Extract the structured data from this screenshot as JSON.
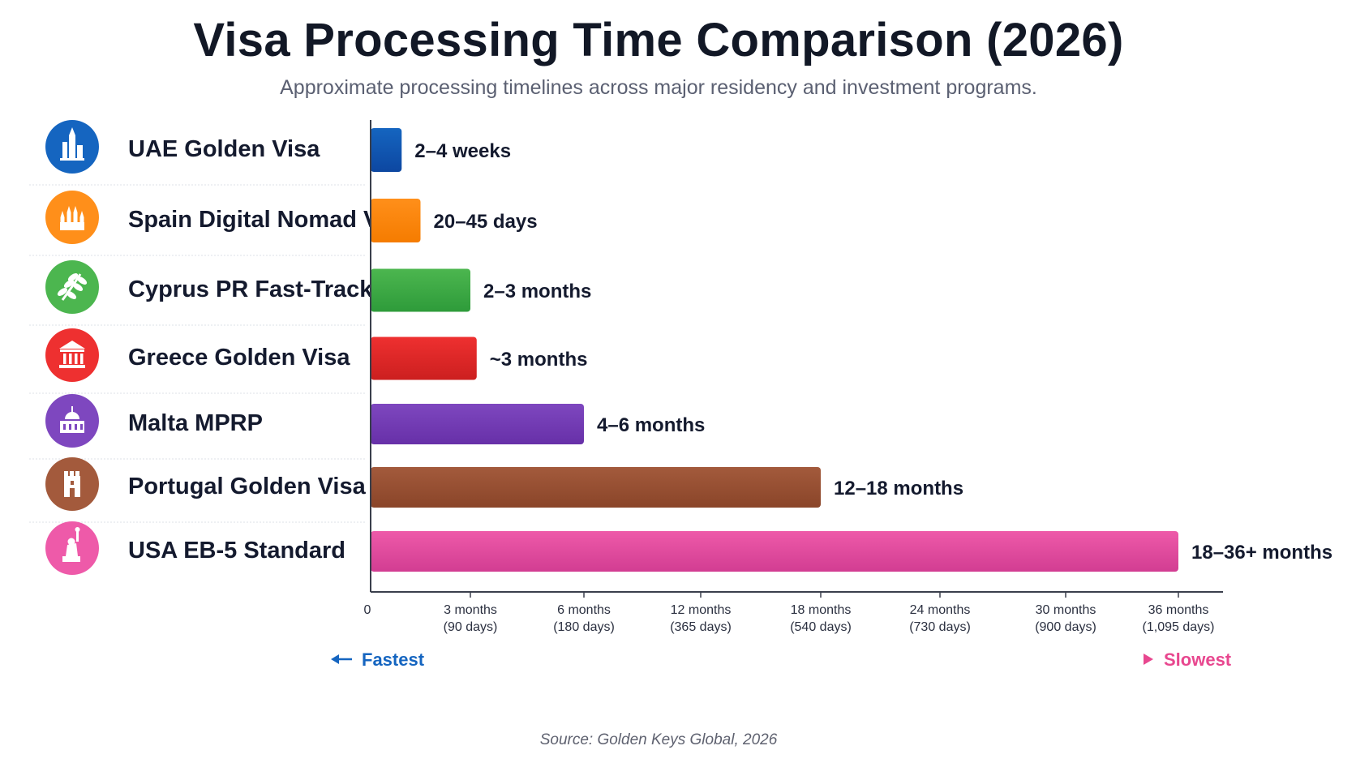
{
  "title": "Visa Processing Time Comparison (2026)",
  "subtitle": "Approximate processing timelines across major residency and investment programs.",
  "source": "Source: Golden Keys Global, 2026",
  "speed_scale": {
    "fastest_label": "Fastest",
    "slowest_label": "Slowest",
    "fastest_color": "#1565c0",
    "slowest_color": "#e8478f"
  },
  "programs": [
    {
      "name": "UAE Golden Visa",
      "icon": "skyscraper-icon",
      "color": "#1565c0",
      "color_dark": "#0d47a1",
      "label": "2–4 weeks"
    },
    {
      "name": "Spain Digital Nomad Visa",
      "icon": "cathedral-icon",
      "color": "#ff8f1a",
      "color_dark": "#f57c00",
      "label": "20–45 days"
    },
    {
      "name": "Cyprus PR Fast-Track",
      "icon": "olive-branch-icon",
      "color": "#4cb64f",
      "color_dark": "#2e9b3a",
      "label": "2–3 months"
    },
    {
      "name": "Greece Golden Visa",
      "icon": "greek-temple-icon",
      "color": "#ee3030",
      "color_dark": "#cc1f1f",
      "label": "~3 months"
    },
    {
      "name": "Malta MPRP",
      "icon": "domed-building-icon",
      "color": "#7e47bf",
      "color_dark": "#6730a8",
      "label": "4–6 months"
    },
    {
      "name": "Portugal Golden Visa",
      "icon": "castle-tower-icon",
      "color": "#a35a3c",
      "color_dark": "#8a4529",
      "label": "12–18 months"
    },
    {
      "name": "USA EB-5 Standard",
      "icon": "statue-of-liberty-icon",
      "color": "#ee5aa9",
      "color_dark": "#d23d92",
      "label": "18–36+ months"
    }
  ],
  "chart_data": {
    "type": "bar",
    "orientation": "horizontal",
    "title": "Visa Processing Time Comparison (2026)",
    "subtitle": "Approximate processing timelines across major residency and investment programs.",
    "categories": [
      "UAE Golden Visa",
      "Spain Digital Nomad Visa",
      "Cyprus PR Fast-Track",
      "Greece Golden Visa",
      "Malta MPRP",
      "Portugal Golden Visa",
      "USA EB-5 Standard"
    ],
    "values": [
      28,
      45,
      90,
      95,
      180,
      540,
      1095
    ],
    "value_labels": [
      "2–4 weeks",
      "20–45 days",
      "2–3 months",
      "~3 months",
      "4–6 months",
      "12–18 months",
      "18–36+ months"
    ],
    "xaxis": {
      "ticks": [
        {
          "value": 0,
          "line1": "0",
          "line2": ""
        },
        {
          "value": 90,
          "line1": "3 months",
          "line2": "(90 days)"
        },
        {
          "value": 180,
          "line1": "6 months",
          "line2": "(180 days)"
        },
        {
          "value": 365,
          "line1": "12 months",
          "line2": "(365 days)"
        },
        {
          "value": 540,
          "line1": "18 months",
          "line2": "(540 days)"
        },
        {
          "value": 730,
          "line1": "24 months",
          "line2": "(730 days)"
        },
        {
          "value": 900,
          "line1": "30 months",
          "line2": "(900 days)"
        },
        {
          "value": 1095,
          "line1": "36 months",
          "line2": "(1,095 days)"
        }
      ],
      "scale": "nonlinear"
    },
    "grid": false
  }
}
